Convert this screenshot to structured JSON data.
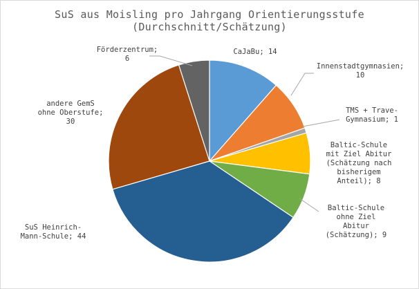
{
  "chart_data": {
    "type": "pie",
    "title": "SuS aus Moisling pro Jahrgang Orientierungsstufe",
    "subtitle": "(Durchschnitt/Schätzung)",
    "slices": [
      {
        "label_lines": [
          "CaJaBu; 14"
        ],
        "value": 14,
        "color": "#5b9bd5"
      },
      {
        "label_lines": [
          "Innenstadtgymnasien;",
          "10"
        ],
        "value": 10,
        "color": "#ed7d31"
      },
      {
        "label_lines": [
          "TMS + Trave-",
          "Gymnasium; 1"
        ],
        "value": 1,
        "color": "#a5a5a5"
      },
      {
        "label_lines": [
          "Baltic-Schule",
          "mit Ziel Abitur",
          "(Schätzung nach",
          "bisherigem",
          "Anteil); 8"
        ],
        "value": 8,
        "color": "#ffc000"
      },
      {
        "label_lines": [
          "Baltic-Schule",
          "ohne Ziel",
          "Abitur",
          "(Schätzung); 9"
        ],
        "value": 9,
        "color": "#70ad47"
      },
      {
        "label_lines": [
          "SuS Heinrich-",
          "Mann-Schule; 44"
        ],
        "value": 44,
        "color": "#255e91"
      },
      {
        "label_lines": [
          "andere GemS",
          "ohne Oberstufe;",
          "30"
        ],
        "value": 30,
        "color": "#9e480e"
      },
      {
        "label_lines": [
          "Förderzentrum;",
          "6"
        ],
        "value": 6,
        "color": "#636363"
      }
    ],
    "legend": "none"
  }
}
